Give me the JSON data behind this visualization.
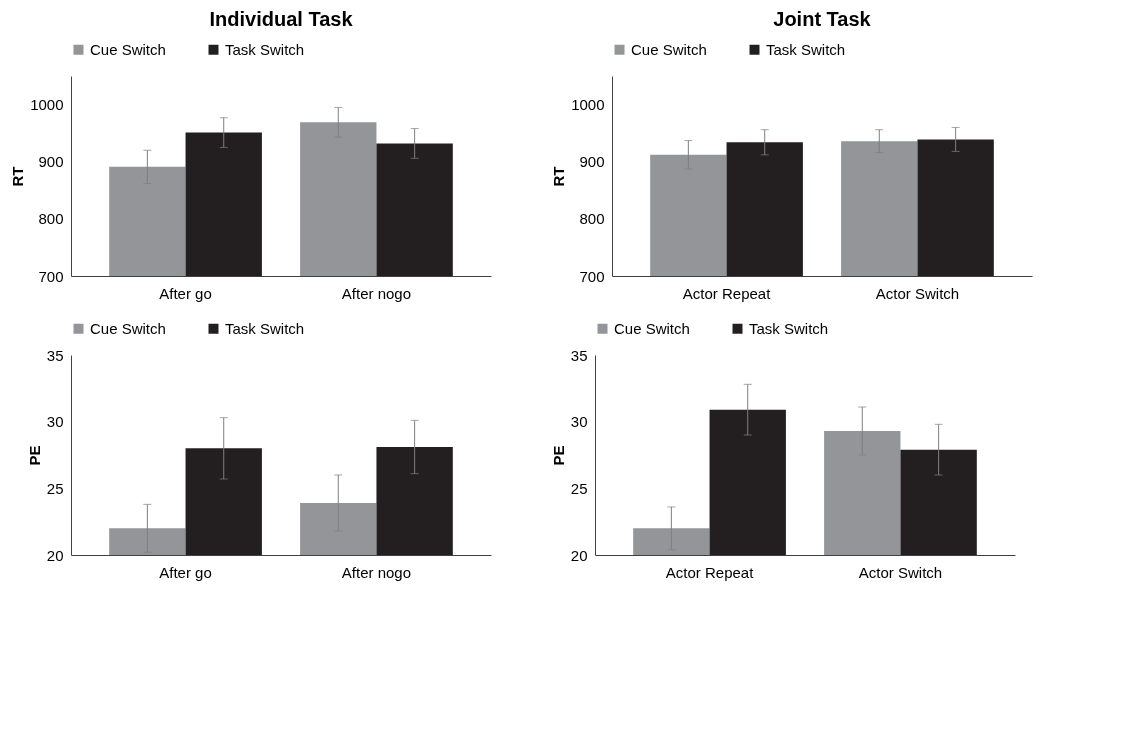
{
  "chart_data": [
    {
      "type": "bar",
      "title": "Individual Task",
      "ylabel": "RT",
      "categories": [
        "After go",
        "After nogo"
      ],
      "ylim": [
        700,
        1050
      ],
      "yticks": [
        700,
        800,
        900,
        1000
      ],
      "grid": false,
      "legend": "top",
      "series": [
        {
          "name": "Cue Switch",
          "color": "#939598",
          "values": [
            891,
            969
          ],
          "errors": [
            29,
            26
          ]
        },
        {
          "name": "Task Switch",
          "color": "#231f20",
          "values": [
            951,
            932
          ],
          "errors": [
            26,
            26
          ]
        }
      ]
    },
    {
      "type": "bar",
      "title": "Joint Task",
      "ylabel": "RT",
      "categories": [
        "Actor Repeat",
        "Actor Switch"
      ],
      "ylim": [
        700,
        1050
      ],
      "yticks": [
        700,
        800,
        900,
        1000
      ],
      "grid": false,
      "legend": "top",
      "series": [
        {
          "name": "Cue Switch",
          "color": "#939598",
          "values": [
            912,
            936
          ],
          "errors": [
            25,
            20
          ]
        },
        {
          "name": "Task Switch",
          "color": "#231f20",
          "values": [
            934,
            939
          ],
          "errors": [
            22,
            21
          ]
        }
      ]
    },
    {
      "type": "bar",
      "ylabel": "PE",
      "categories": [
        "After go",
        "After nogo"
      ],
      "ylim": [
        20,
        35
      ],
      "yticks": [
        20,
        25,
        30,
        35
      ],
      "grid": false,
      "legend": "top",
      "series": [
        {
          "name": "Cue Switch",
          "color": "#939598",
          "values": [
            22.0,
            23.9
          ],
          "errors": [
            1.8,
            2.1
          ]
        },
        {
          "name": "Task Switch",
          "color": "#231f20",
          "values": [
            28.0,
            28.1
          ],
          "errors": [
            2.3,
            2.0
          ]
        }
      ]
    },
    {
      "type": "bar",
      "ylabel": "PE",
      "categories": [
        "Actor Repeat",
        "Actor Switch"
      ],
      "ylim": [
        20,
        35
      ],
      "yticks": [
        20,
        25,
        30,
        35
      ],
      "grid": false,
      "legend": "top",
      "series": [
        {
          "name": "Cue Switch",
          "color": "#939598",
          "values": [
            22.0,
            29.3
          ],
          "errors": [
            1.6,
            1.8
          ]
        },
        {
          "name": "Task Switch",
          "color": "#231f20",
          "values": [
            30.9,
            27.9
          ],
          "errors": [
            1.9,
            1.9
          ]
        }
      ]
    }
  ]
}
